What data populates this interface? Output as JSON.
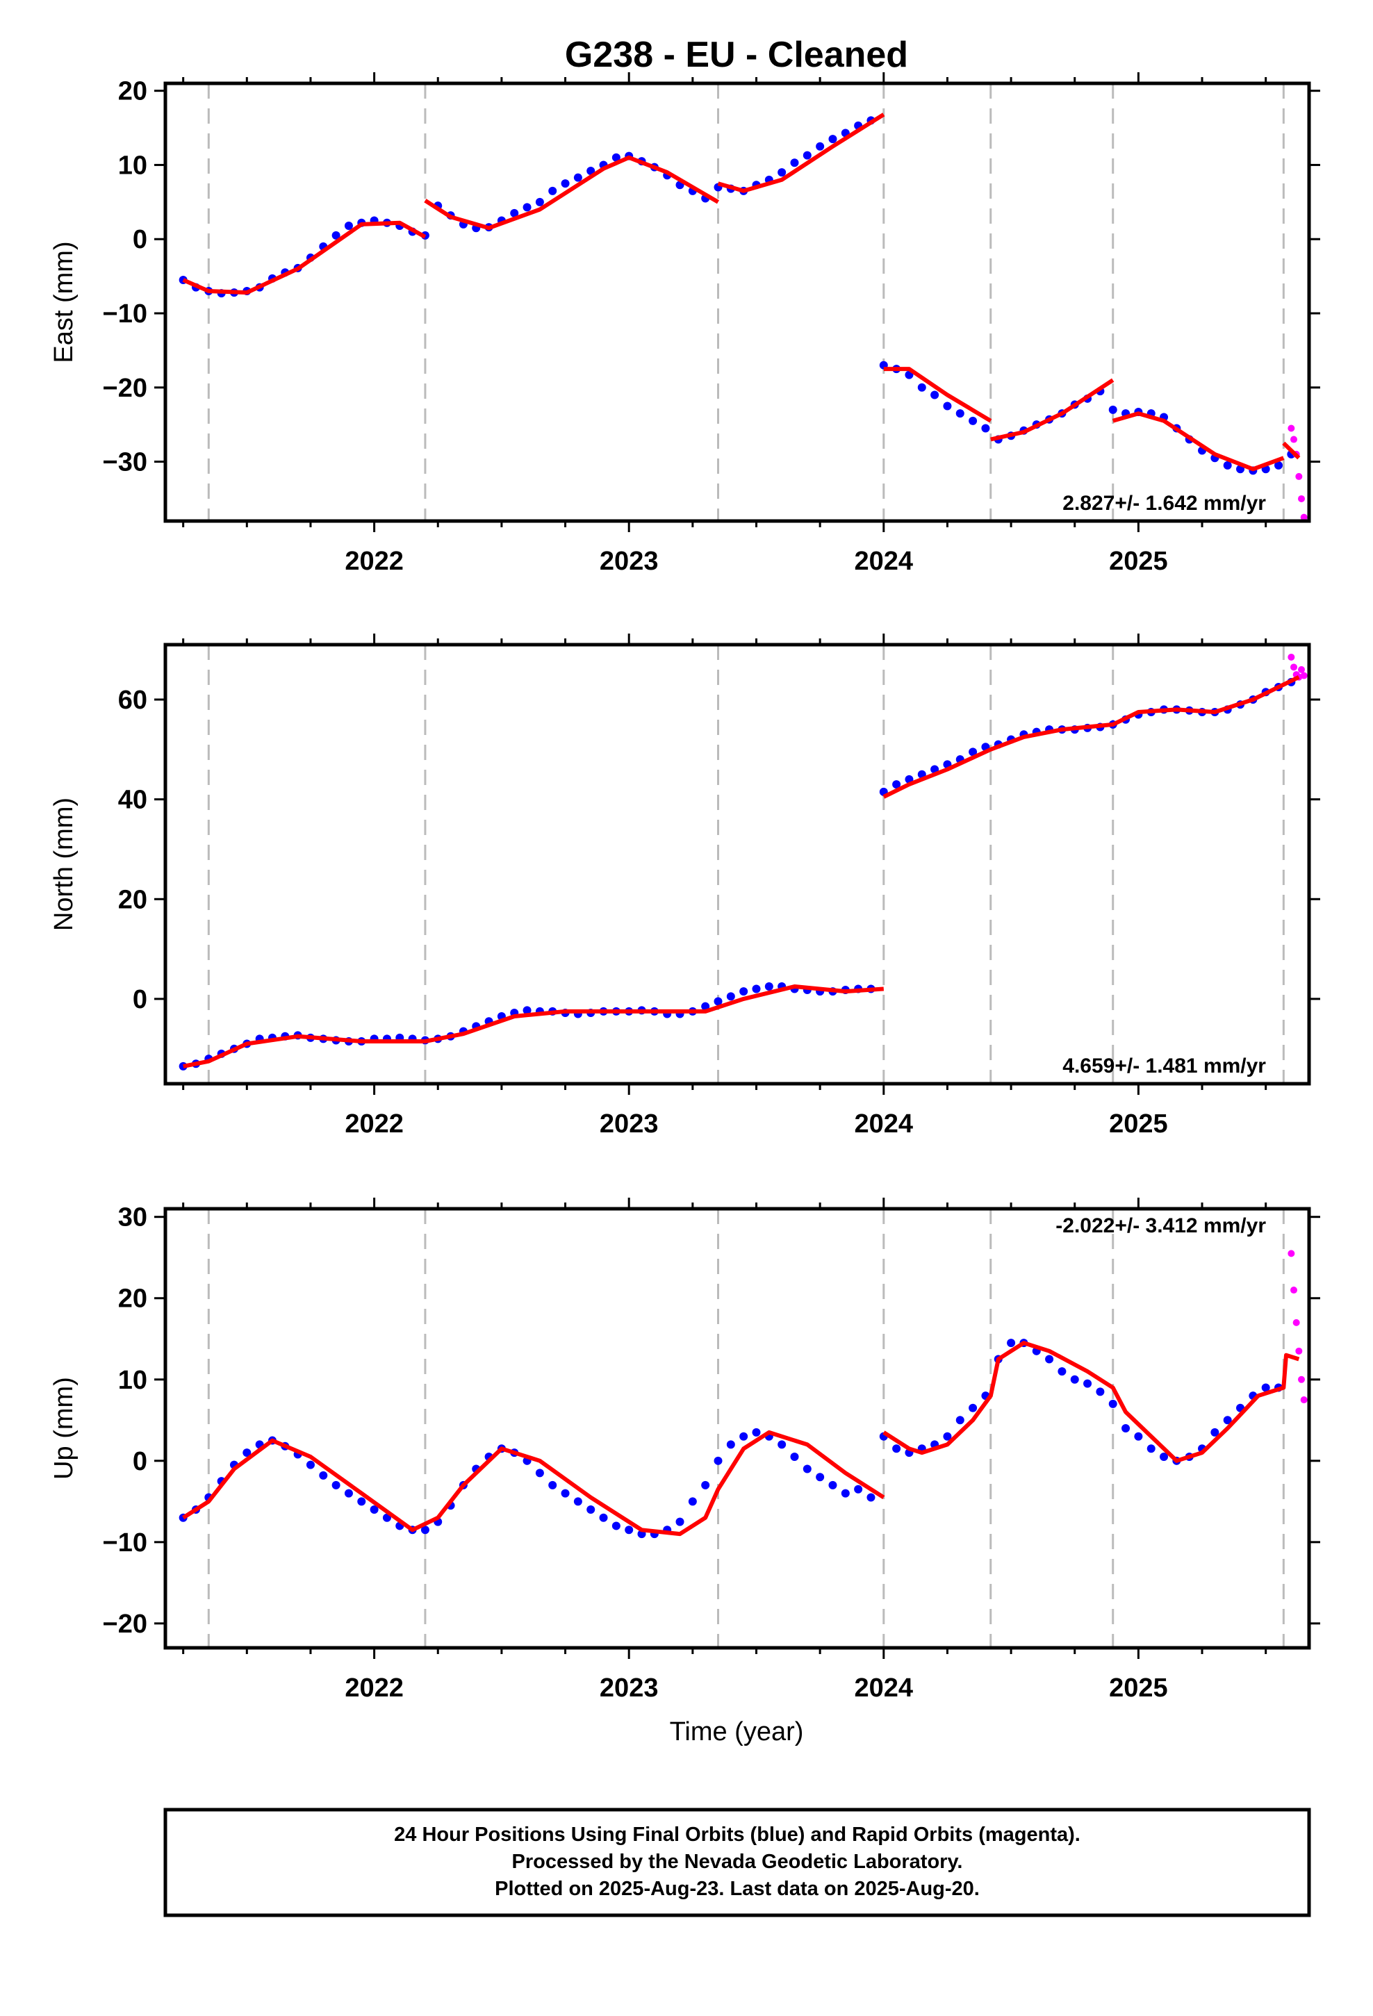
{
  "title": "G238  - EU - Cleaned",
  "xlabel": "Time (year)",
  "caption": [
    "24 Hour Positions Using Final Orbits (blue) and Rapid Orbits (magenta).",
    "Processed by the Nevada Geodetic Laboratory.",
    "Plotted on 2025-Aug-23. Last data on 2025-Aug-20."
  ],
  "colors": {
    "final": "#0000ff",
    "rapid": "#ff00ff",
    "model": "#ff0000",
    "event": "#bbbbbb"
  },
  "chart_data": [
    {
      "type": "scatter",
      "name": "east",
      "ylabel": "East (mm)",
      "rate_label": "2.827+/- 1.642 mm/yr",
      "rate_position": "bottom-right",
      "xlim": [
        2021.18,
        2025.67
      ],
      "ylim": [
        -38,
        21
      ],
      "xticks": [
        2022,
        2023,
        2024,
        2025
      ],
      "yticks": [
        -30,
        -20,
        -10,
        0,
        10,
        20
      ],
      "event_lines": [
        2021.35,
        2022.2,
        2023.35,
        2024.0,
        2024.42,
        2024.9,
        2025.57
      ],
      "model_segments": [
        [
          [
            2021.25,
            -5.5
          ],
          [
            2021.35,
            -7.0
          ],
          [
            2021.5,
            -7.2
          ],
          [
            2021.7,
            -4.0
          ],
          [
            2021.95,
            2.0
          ],
          [
            2022.1,
            2.2
          ],
          [
            2022.2,
            0.3
          ]
        ],
        [
          [
            2022.2,
            5.2
          ],
          [
            2022.3,
            3.0
          ],
          [
            2022.45,
            1.5
          ],
          [
            2022.65,
            4.0
          ],
          [
            2022.9,
            9.5
          ],
          [
            2023.0,
            11.0
          ],
          [
            2023.15,
            9.0
          ],
          [
            2023.35,
            5.0
          ]
        ],
        [
          [
            2023.35,
            7.5
          ],
          [
            2023.45,
            6.5
          ],
          [
            2023.6,
            8.0
          ],
          [
            2023.8,
            12.5
          ],
          [
            2024.0,
            16.8
          ]
        ],
        [
          [
            2024.0,
            -17.5
          ],
          [
            2024.1,
            -17.5
          ],
          [
            2024.25,
            -21.0
          ],
          [
            2024.42,
            -24.5
          ]
        ],
        [
          [
            2024.42,
            -27.0
          ],
          [
            2024.55,
            -26.0
          ],
          [
            2024.7,
            -23.5
          ],
          [
            2024.9,
            -19.0
          ]
        ],
        [
          [
            2024.9,
            -24.5
          ],
          [
            2025.0,
            -23.5
          ],
          [
            2025.1,
            -24.5
          ],
          [
            2025.3,
            -29.0
          ],
          [
            2025.45,
            -31.0
          ],
          [
            2025.57,
            -29.5
          ]
        ],
        [
          [
            2025.57,
            -27.5
          ],
          [
            2025.63,
            -29.5
          ]
        ]
      ],
      "series_final": {
        "name": "final orbits",
        "x": [
          2021.25,
          2021.3,
          2021.35,
          2021.4,
          2021.45,
          2021.5,
          2021.55,
          2021.6,
          2021.65,
          2021.7,
          2021.75,
          2021.8,
          2021.85,
          2021.9,
          2021.95,
          2022.0,
          2022.05,
          2022.1,
          2022.15,
          2022.2,
          2022.25,
          2022.3,
          2022.35,
          2022.4,
          2022.45,
          2022.5,
          2022.55,
          2022.6,
          2022.65,
          2022.7,
          2022.75,
          2022.8,
          2022.85,
          2022.9,
          2022.95,
          2023.0,
          2023.05,
          2023.1,
          2023.15,
          2023.2,
          2023.25,
          2023.3,
          2023.35,
          2023.4,
          2023.45,
          2023.5,
          2023.55,
          2023.6,
          2023.65,
          2023.7,
          2023.75,
          2023.8,
          2023.85,
          2023.9,
          2023.95,
          2024.0,
          2024.05,
          2024.1,
          2024.15,
          2024.2,
          2024.25,
          2024.3,
          2024.35,
          2024.4,
          2024.45,
          2024.5,
          2024.55,
          2024.6,
          2024.65,
          2024.7,
          2024.75,
          2024.8,
          2024.85,
          2024.9,
          2024.95,
          2025.0,
          2025.05,
          2025.1,
          2025.15,
          2025.2,
          2025.25,
          2025.3,
          2025.35,
          2025.4,
          2025.45,
          2025.5,
          2025.55,
          2025.6
        ],
        "y": [
          -5.5,
          -6.5,
          -7.0,
          -7.3,
          -7.2,
          -7.0,
          -6.5,
          -5.3,
          -4.5,
          -3.9,
          -2.5,
          -1.0,
          0.5,
          1.8,
          2.2,
          2.5,
          2.2,
          1.8,
          1.0,
          0.5,
          4.5,
          3.2,
          2.0,
          1.5,
          1.6,
          2.5,
          3.5,
          4.3,
          5.0,
          6.5,
          7.5,
          8.3,
          9.2,
          10.0,
          11.0,
          11.2,
          10.5,
          9.7,
          8.6,
          7.3,
          6.5,
          5.5,
          7.0,
          6.8,
          6.5,
          7.3,
          8.0,
          9.0,
          10.3,
          11.3,
          12.5,
          13.5,
          14.3,
          15.3,
          16.0,
          -17.0,
          -17.5,
          -18.3,
          -20.0,
          -21.0,
          -22.5,
          -23.5,
          -24.5,
          -25.5,
          -27.0,
          -26.5,
          -25.8,
          -25.0,
          -24.3,
          -23.5,
          -22.3,
          -21.5,
          -20.5,
          -23.0,
          -23.5,
          -23.3,
          -23.5,
          -24.0,
          -25.5,
          -27.0,
          -28.5,
          -29.5,
          -30.5,
          -31.0,
          -31.2,
          -31.0,
          -30.5,
          -29.0
        ]
      },
      "series_rapid": {
        "name": "rapid orbits",
        "x": [
          2025.6,
          2025.61,
          2025.62,
          2025.63,
          2025.64,
          2025.65
        ],
        "y": [
          -25.5,
          -27.0,
          -29.0,
          -32.0,
          -35.0,
          -37.5
        ]
      }
    },
    {
      "type": "scatter",
      "name": "north",
      "ylabel": "North (mm)",
      "rate_label": "4.659+/- 1.481 mm/yr",
      "rate_position": "bottom-right",
      "xlim": [
        2021.18,
        2025.67
      ],
      "ylim": [
        -17,
        71
      ],
      "xticks": [
        2022,
        2023,
        2024,
        2025
      ],
      "yticks": [
        0,
        20,
        40,
        60
      ],
      "event_lines": [
        2021.35,
        2022.2,
        2023.35,
        2024.0,
        2024.42,
        2024.9,
        2025.57
      ],
      "model_segments": [
        [
          [
            2021.25,
            -13.5
          ],
          [
            2021.35,
            -12.5
          ],
          [
            2021.5,
            -9.0
          ],
          [
            2021.7,
            -7.5
          ],
          [
            2021.95,
            -8.5
          ],
          [
            2022.2,
            -8.5
          ],
          [
            2022.35,
            -7.0
          ],
          [
            2022.55,
            -3.5
          ],
          [
            2022.75,
            -2.5
          ],
          [
            2023.0,
            -2.5
          ],
          [
            2023.15,
            -2.5
          ],
          [
            2023.3,
            -2.5
          ],
          [
            2023.45,
            0.0
          ],
          [
            2023.65,
            2.5
          ],
          [
            2023.85,
            1.5
          ],
          [
            2024.0,
            2.0
          ]
        ],
        [
          [
            2024.0,
            40.5
          ],
          [
            2024.1,
            43.0
          ],
          [
            2024.25,
            46.0
          ],
          [
            2024.42,
            50.0
          ],
          [
            2024.55,
            52.5
          ],
          [
            2024.7,
            54.0
          ],
          [
            2024.9,
            55.0
          ],
          [
            2025.0,
            57.5
          ],
          [
            2025.15,
            58.0
          ],
          [
            2025.3,
            57.5
          ],
          [
            2025.45,
            60.0
          ],
          [
            2025.57,
            63.0
          ],
          [
            2025.63,
            64.5
          ]
        ]
      ],
      "series_final": {
        "name": "final orbits",
        "x": [
          2021.25,
          2021.3,
          2021.35,
          2021.4,
          2021.45,
          2021.5,
          2021.55,
          2021.6,
          2021.65,
          2021.7,
          2021.75,
          2021.8,
          2021.85,
          2021.9,
          2021.95,
          2022.0,
          2022.05,
          2022.1,
          2022.15,
          2022.2,
          2022.25,
          2022.3,
          2022.35,
          2022.4,
          2022.45,
          2022.5,
          2022.55,
          2022.6,
          2022.65,
          2022.7,
          2022.75,
          2022.8,
          2022.85,
          2022.9,
          2022.95,
          2023.0,
          2023.05,
          2023.1,
          2023.15,
          2023.2,
          2023.25,
          2023.3,
          2023.35,
          2023.4,
          2023.45,
          2023.5,
          2023.55,
          2023.6,
          2023.65,
          2023.7,
          2023.75,
          2023.8,
          2023.85,
          2023.9,
          2023.95,
          2024.0,
          2024.05,
          2024.1,
          2024.15,
          2024.2,
          2024.25,
          2024.3,
          2024.35,
          2024.4,
          2024.45,
          2024.5,
          2024.55,
          2024.6,
          2024.65,
          2024.7,
          2024.75,
          2024.8,
          2024.85,
          2024.9,
          2024.95,
          2025.0,
          2025.05,
          2025.1,
          2025.15,
          2025.2,
          2025.25,
          2025.3,
          2025.35,
          2025.4,
          2025.45,
          2025.5,
          2025.55,
          2025.6
        ],
        "y": [
          -13.5,
          -13.0,
          -12.0,
          -11.0,
          -10.0,
          -9.0,
          -8.0,
          -7.8,
          -7.5,
          -7.3,
          -7.8,
          -8.0,
          -8.3,
          -8.5,
          -8.5,
          -8.0,
          -8.0,
          -7.8,
          -8.0,
          -8.3,
          -8.0,
          -7.5,
          -6.5,
          -5.5,
          -4.5,
          -3.5,
          -2.8,
          -2.3,
          -2.5,
          -2.5,
          -2.8,
          -3.0,
          -2.8,
          -2.5,
          -2.5,
          -2.5,
          -2.3,
          -2.5,
          -3.0,
          -3.0,
          -2.5,
          -1.5,
          -0.5,
          0.5,
          1.5,
          2.0,
          2.5,
          2.5,
          2.0,
          1.8,
          1.5,
          1.5,
          1.8,
          2.0,
          2.0,
          41.5,
          43.0,
          44.0,
          45.0,
          46.0,
          47.0,
          48.0,
          49.5,
          50.5,
          51.0,
          52.0,
          53.0,
          53.5,
          54.0,
          54.0,
          54.0,
          54.3,
          54.5,
          55.0,
          56.0,
          57.0,
          57.5,
          58.0,
          58.0,
          57.8,
          57.5,
          57.5,
          58.0,
          59.0,
          60.0,
          61.5,
          62.5,
          63.5
        ]
      },
      "series_rapid": {
        "name": "rapid orbits",
        "x": [
          2025.6,
          2025.61,
          2025.62,
          2025.63,
          2025.64,
          2025.65
        ],
        "y": [
          68.5,
          66.5,
          65.0,
          64.5,
          66.0,
          64.8
        ]
      }
    },
    {
      "type": "scatter",
      "name": "up",
      "ylabel": "Up (mm)",
      "rate_label": "-2.022+/- 3.412 mm/yr",
      "rate_position": "top-right",
      "xlim": [
        2021.18,
        2025.67
      ],
      "ylim": [
        -23,
        31
      ],
      "xticks": [
        2022,
        2023,
        2024,
        2025
      ],
      "yticks": [
        -20,
        -10,
        0,
        10,
        20,
        30
      ],
      "event_lines": [
        2021.35,
        2022.2,
        2023.35,
        2024.0,
        2024.42,
        2024.9,
        2025.57
      ],
      "model_segments": [
        [
          [
            2021.25,
            -7.0
          ],
          [
            2021.35,
            -5.0
          ],
          [
            2021.45,
            -1.0
          ],
          [
            2021.6,
            2.5
          ],
          [
            2021.75,
            0.5
          ],
          [
            2021.95,
            -4.0
          ],
          [
            2022.15,
            -8.5
          ],
          [
            2022.25,
            -7.0
          ],
          [
            2022.35,
            -3.0
          ],
          [
            2022.5,
            1.5
          ],
          [
            2022.65,
            0.0
          ],
          [
            2022.85,
            -4.5
          ],
          [
            2023.05,
            -8.5
          ],
          [
            2023.2,
            -9.0
          ],
          [
            2023.3,
            -7.0
          ],
          [
            2023.35,
            -3.5
          ],
          [
            2023.45,
            1.5
          ],
          [
            2023.55,
            3.5
          ],
          [
            2023.7,
            2.0
          ],
          [
            2023.85,
            -1.5
          ],
          [
            2024.0,
            -4.5
          ]
        ],
        [
          [
            2024.0,
            3.5
          ],
          [
            2024.1,
            1.5
          ],
          [
            2024.15,
            1.0
          ],
          [
            2024.25,
            2.0
          ],
          [
            2024.35,
            5.0
          ],
          [
            2024.42,
            8.0
          ],
          [
            2024.45,
            12.5
          ],
          [
            2024.55,
            14.5
          ],
          [
            2024.65,
            13.5
          ],
          [
            2024.8,
            11.0
          ],
          [
            2024.9,
            9.0
          ],
          [
            2024.95,
            6.0
          ],
          [
            2025.05,
            3.0
          ],
          [
            2025.15,
            0.0
          ],
          [
            2025.25,
            1.0
          ],
          [
            2025.35,
            4.0
          ],
          [
            2025.47,
            8.0
          ],
          [
            2025.57,
            9.0
          ],
          [
            2025.58,
            13.0
          ],
          [
            2025.63,
            12.5
          ]
        ]
      ],
      "series_final": {
        "name": "final orbits",
        "x": [
          2021.25,
          2021.3,
          2021.35,
          2021.4,
          2021.45,
          2021.5,
          2021.55,
          2021.6,
          2021.65,
          2021.7,
          2021.75,
          2021.8,
          2021.85,
          2021.9,
          2021.95,
          2022.0,
          2022.05,
          2022.1,
          2022.15,
          2022.2,
          2022.25,
          2022.3,
          2022.35,
          2022.4,
          2022.45,
          2022.5,
          2022.55,
          2022.6,
          2022.65,
          2022.7,
          2022.75,
          2022.8,
          2022.85,
          2022.9,
          2022.95,
          2023.0,
          2023.05,
          2023.1,
          2023.15,
          2023.2,
          2023.25,
          2023.3,
          2023.35,
          2023.4,
          2023.45,
          2023.5,
          2023.55,
          2023.6,
          2023.65,
          2023.7,
          2023.75,
          2023.8,
          2023.85,
          2023.9,
          2023.95,
          2024.0,
          2024.05,
          2024.1,
          2024.15,
          2024.2,
          2024.25,
          2024.3,
          2024.35,
          2024.4,
          2024.45,
          2024.5,
          2024.55,
          2024.6,
          2024.65,
          2024.7,
          2024.75,
          2024.8,
          2024.85,
          2024.9,
          2024.95,
          2025.0,
          2025.05,
          2025.1,
          2025.15,
          2025.2,
          2025.25,
          2025.3,
          2025.35,
          2025.4,
          2025.45,
          2025.5,
          2025.55
        ],
        "y": [
          -7.0,
          -6.0,
          -4.5,
          -2.5,
          -0.5,
          1.0,
          2.0,
          2.5,
          1.8,
          0.8,
          -0.5,
          -1.8,
          -3.0,
          -4.0,
          -5.0,
          -6.0,
          -7.0,
          -8.0,
          -8.5,
          -8.5,
          -7.5,
          -5.5,
          -3.0,
          -1.0,
          0.5,
          1.5,
          1.0,
          0.0,
          -1.5,
          -3.0,
          -4.0,
          -5.0,
          -6.0,
          -7.0,
          -8.0,
          -8.5,
          -9.0,
          -9.0,
          -8.5,
          -7.5,
          -5.0,
          -3.0,
          0.0,
          2.0,
          3.0,
          3.5,
          3.0,
          2.0,
          0.5,
          -1.0,
          -2.0,
          -3.0,
          -4.0,
          -3.5,
          -4.5,
          3.0,
          1.5,
          1.0,
          1.5,
          2.0,
          3.0,
          5.0,
          6.5,
          8.0,
          12.5,
          14.5,
          14.5,
          13.5,
          12.5,
          11.0,
          10.0,
          9.5,
          8.5,
          7.0,
          4.0,
          3.0,
          1.5,
          0.5,
          0.0,
          0.5,
          1.5,
          3.5,
          5.0,
          6.5,
          8.0,
          9.0,
          9.0
        ]
      },
      "series_rapid": {
        "name": "rapid orbits",
        "x": [
          2025.6,
          2025.61,
          2025.62,
          2025.63,
          2025.64,
          2025.65
        ],
        "y": [
          25.5,
          21.0,
          17.0,
          13.5,
          10.0,
          7.5
        ]
      }
    }
  ]
}
